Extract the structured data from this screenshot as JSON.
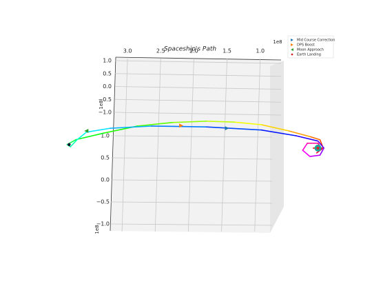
{
  "chart_data": {
    "type": "line3d",
    "title": "Spaceship's Path",
    "x_offset": "1e8",
    "y_offset": "1e8",
    "z_offset": "1e8",
    "xlim": [
      3.25,
      0.8
    ],
    "ylim": [
      -1.1,
      1.1
    ],
    "zlim": [
      -1.1,
      1.1
    ],
    "xticks": [
      {
        "value": 3,
        "label": "3.0"
      },
      2.5,
      {
        "value": 2,
        "label": "2.0"
      },
      1.5,
      {
        "value": 1,
        "label": "1.0"
      }
    ],
    "yticks": [
      {
        "value": 1,
        "label": "1.0"
      },
      0.5,
      {
        "value": 0,
        "label": "0.0"
      },
      {
        "value": -0.5,
        "label": "−0.5"
      },
      {
        "value": -1,
        "label": "−1.0"
      }
    ],
    "zticks": [
      {
        "value": 1,
        "label": "1.0"
      },
      0.5,
      {
        "value": 0,
        "label": "0.0"
      },
      {
        "value": -0.5,
        "label": "−0.5"
      },
      {
        "value": -1,
        "label": "−1.0"
      }
    ],
    "grid": true,
    "colormap": "hsv",
    "legend": "upper right",
    "path": {
      "x": [
        0.2,
        0.05,
        0.1,
        0.25,
        0.57,
        0.98,
        1.39,
        1.81,
        2.33,
        2.85,
        3.36,
        3.78,
        3.91,
        3.86,
        3.76,
        3.62,
        3.26,
        2.64,
        1.81,
        0.98,
        0.46,
        0.13,
        0.04,
        0.1,
        0.25,
        0.36,
        0.29,
        0.13,
        0.07,
        0.15
      ],
      "y": [
        0,
        0,
        0,
        0,
        0,
        0,
        0,
        0,
        0,
        0,
        0,
        0,
        0,
        0,
        0,
        0,
        0,
        0,
        0,
        0,
        0,
        0,
        0,
        0,
        0,
        0,
        0,
        0,
        0,
        0
      ],
      "z": [
        0.72,
        0.72,
        0.91,
        0.98,
        1.11,
        1.25,
        1.31,
        1.33,
        1.3,
        1.22,
        1.06,
        0.91,
        0.8,
        0.75,
        0.91,
        1.08,
        1.17,
        1.22,
        1.2,
        1.13,
        1.0,
        0.88,
        0.72,
        0.56,
        0.53,
        0.67,
        0.83,
        0.83,
        0.7,
        0.61
      ]
    },
    "bodies": [
      {
        "x": 3.88,
        "y": 0,
        "z": 0.8,
        "color": "#111133",
        "size": 2.2
      },
      {
        "x": 0.13,
        "y": 0,
        "z": 0.72,
        "color": "#1aa89a",
        "size": 5
      }
    ],
    "series": [
      {
        "name": "Mid Course Correction",
        "color": "#1f77b4",
        "marker": "triangle-right",
        "x": [
          1.5
        ],
        "y": [
          0
        ],
        "z": [
          1.17
        ]
      },
      {
        "name": "DPS Boost",
        "color": "#ff7f0e",
        "marker": "triangle-right",
        "x": [
          2.19
        ],
        "y": [
          0
        ],
        "z": [
          1.23
        ]
      },
      {
        "name": "Moon Approach",
        "color": "#2ca02c",
        "marker": "triangle-left",
        "x": [
          3.62
        ],
        "y": [
          0
        ],
        "z": [
          1.11
        ]
      },
      {
        "name": "Earth Landing",
        "color": "#d62728",
        "marker": "circle",
        "x": [
          0.13
        ],
        "y": [
          0
        ],
        "z": [
          0.72
        ]
      }
    ]
  }
}
